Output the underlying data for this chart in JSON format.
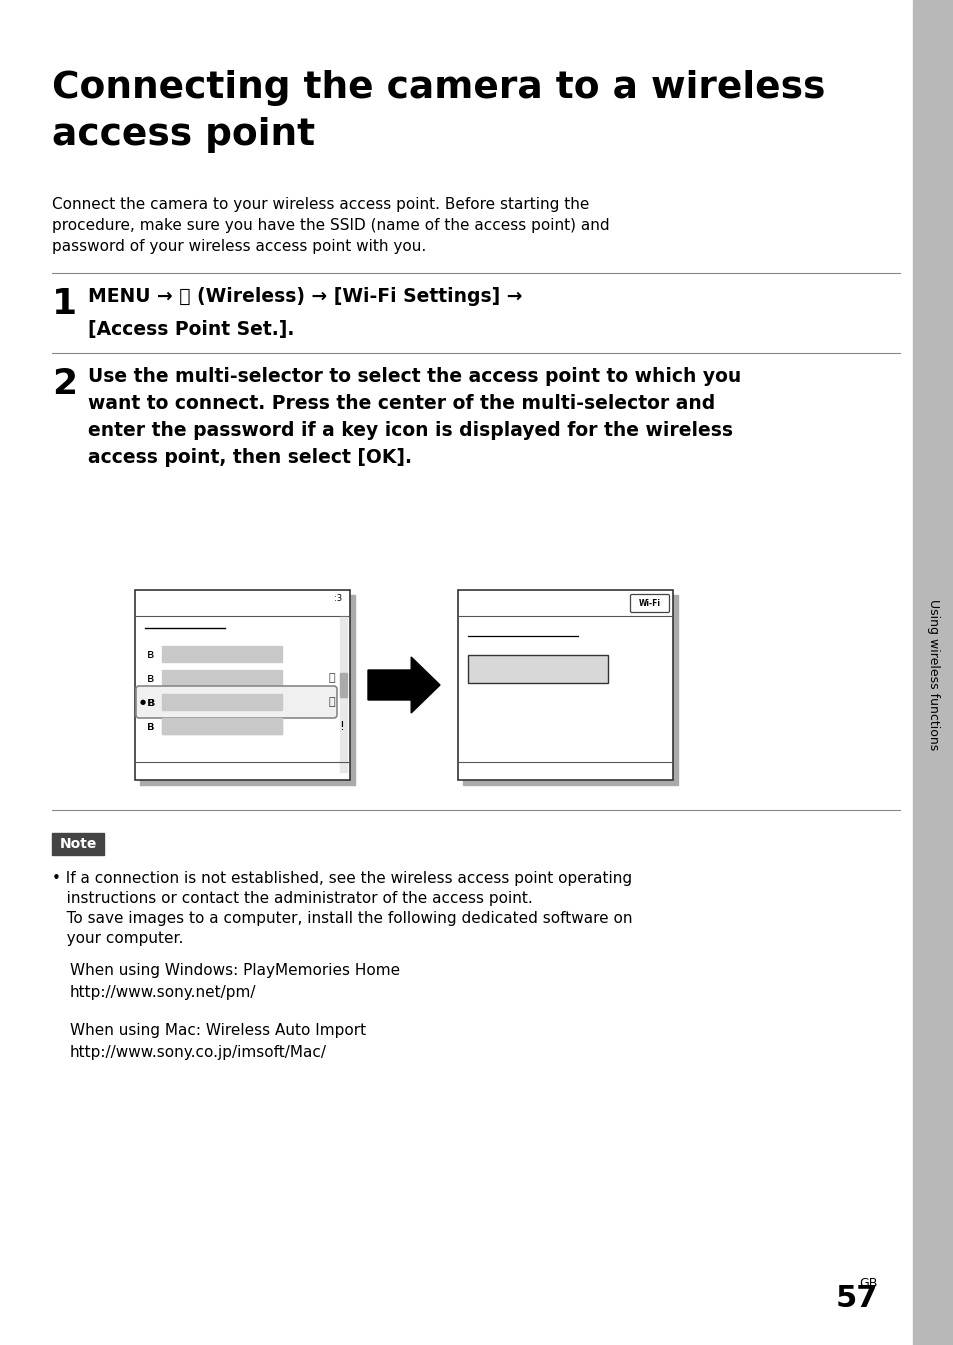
{
  "bg_color": "#ffffff",
  "sidebar_color": "#b8b8b8",
  "title_line1": "Connecting the camera to a wireless",
  "title_line2": "access point",
  "intro_line1": "Connect the camera to your wireless access point. Before starting the",
  "intro_line2": "procedure, make sure you have the SSID (name of the access point) and",
  "intro_line3": "password of your wireless access point with you.",
  "step1_num": "1",
  "step1_line1": "MENU → ⦛ (Wireless) → [Wi-Fi Settings] →",
  "step1_line2": "[Access Point Set.].",
  "step2_num": "2",
  "step2_line1": "Use the multi-selector to select the access point to which you",
  "step2_line2": "want to connect. Press the center of the multi-selector and",
  "step2_line3": "enter the password if a key icon is displayed for the wireless",
  "step2_line4": "access point, then select [OK].",
  "note_label": "Note",
  "note_b1": "• If a connection is not established, see the wireless access point operating",
  "note_b2": "   instructions or contact the administrator of the access point.",
  "note_b3": "   To save images to a computer, install the following dedicated software on",
  "note_b4": "   your computer.",
  "win1": "When using Windows: PlayMemories Home",
  "win2": "http://www.sony.net/pm/",
  "mac1": "When using Mac: Wireless Auto Import",
  "mac2": "http://www.sony.co.jp/imsoft/Mac/",
  "page_label": "GB",
  "page_num": "57",
  "sidebar_text": "Using wireless functions"
}
